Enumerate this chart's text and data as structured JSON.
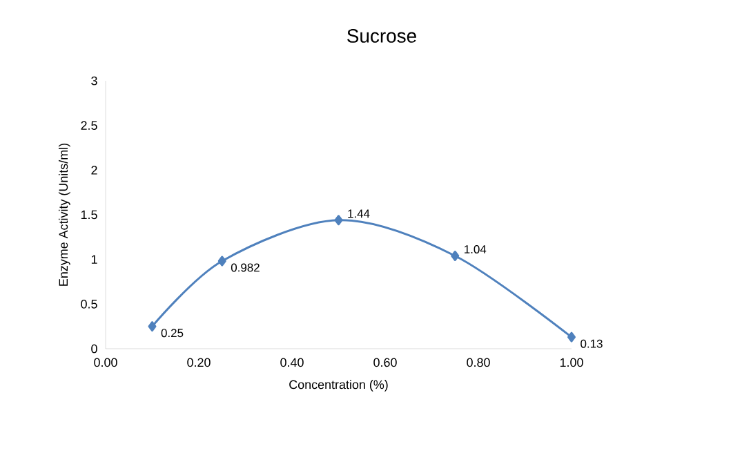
{
  "chart_data": {
    "type": "line",
    "title": "Sucrose",
    "xlabel": "Concentration (%)",
    "ylabel": "Enzyme Activity (Units/ml)",
    "x": [
      0.1,
      0.25,
      0.5,
      0.75,
      1.0
    ],
    "values": [
      0.25,
      0.982,
      1.44,
      1.04,
      0.13
    ],
    "color": "#4f81bd",
    "marker": "diamond",
    "line_style": "solid",
    "data_labels": true,
    "xlim": [
      0,
      1
    ],
    "xticks": [
      {
        "value": 0,
        "label": "0.00"
      },
      {
        "value": 0.2,
        "label": "0.20"
      },
      {
        "value": 0.4,
        "label": "0.40"
      },
      {
        "value": 0.6,
        "label": "0.60"
      },
      {
        "value": 0.8,
        "label": "0.80"
      },
      {
        "value": 1.0,
        "label": "1.00"
      }
    ],
    "ylim": [
      0,
      3
    ],
    "yticks": [
      0,
      0.5,
      1,
      1.5,
      2,
      2.5,
      3
    ]
  }
}
